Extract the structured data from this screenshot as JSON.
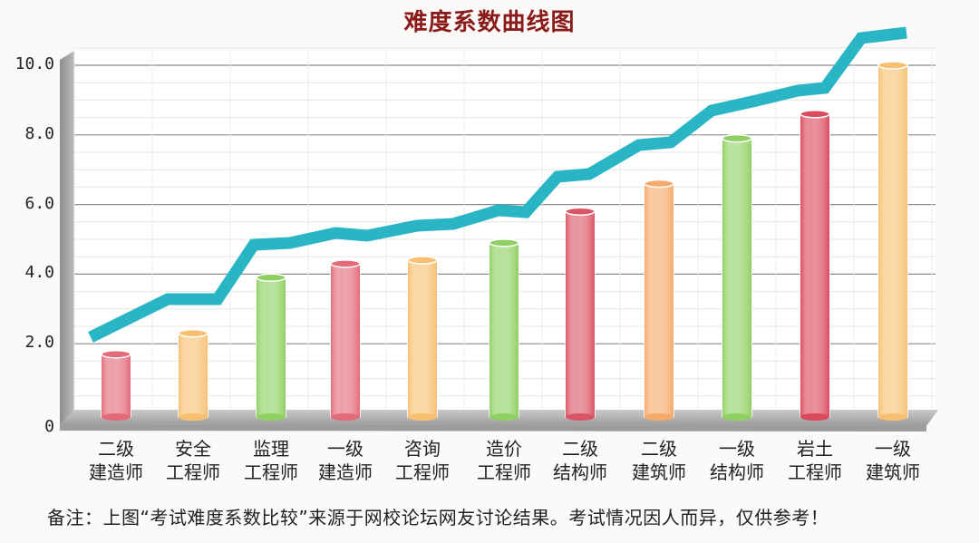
{
  "chart_data": {
    "type": "bar",
    "title": "难度系数曲线图",
    "xlabel": "",
    "ylabel": "",
    "ylim": [
      0,
      10
    ],
    "yticks": [
      "0",
      "2.0",
      "4.0",
      "6.0",
      "8.0",
      "10.0"
    ],
    "grid": true,
    "categories": [
      [
        "二级",
        "建造师"
      ],
      [
        "安全",
        "工程师"
      ],
      [
        "监理",
        "工程师"
      ],
      [
        "一级",
        "建造师"
      ],
      [
        "咨询",
        "工程师"
      ],
      [
        "造价",
        "工程师"
      ],
      [
        "二级",
        "结构师"
      ],
      [
        "二级",
        "建筑师"
      ],
      [
        "一级",
        "结构师"
      ],
      [
        "岩土",
        "工程师"
      ],
      [
        "一级",
        "建筑师"
      ]
    ],
    "values": [
      1.7,
      2.3,
      3.9,
      4.3,
      4.4,
      4.9,
      5.8,
      6.6,
      7.9,
      8.6,
      10.0
    ],
    "bar_colors": [
      "#e46a7a",
      "#f7c070",
      "#8fd062",
      "#e46a7a",
      "#f7c070",
      "#8fd062",
      "#d95565",
      "#f5aa6a",
      "#8fd062",
      "#d94a5c",
      "#f7c070"
    ],
    "overlay_line": {
      "description": "Rising difficulty trend ribbon",
      "color": "#2ab5c4"
    },
    "legend": null
  },
  "title": "难度系数曲线图",
  "note": "备注：上图“考试难度系数比较”来源于网校论坛网友讨论结果。考试情况因人而异，仅供参考！"
}
